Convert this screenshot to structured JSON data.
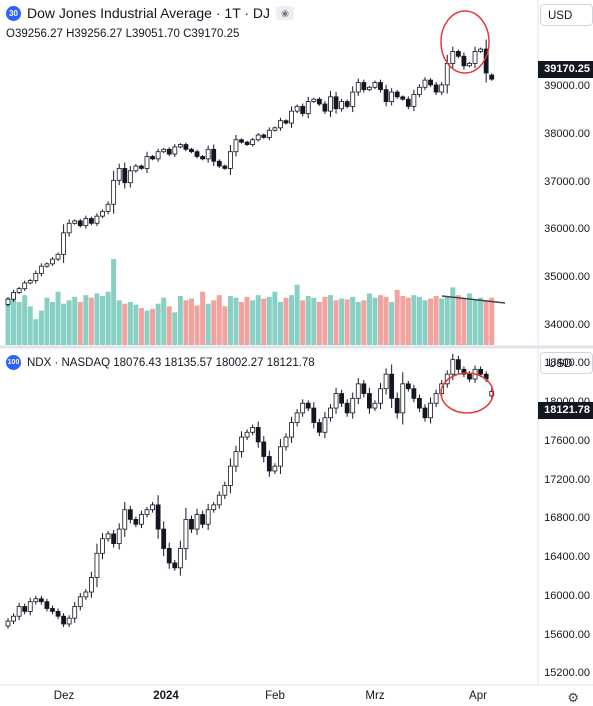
{
  "top_pane": {
    "badge": "30",
    "badge_color": "#2962ff",
    "title": "Dow Jones Industrial Average · 1T · DJ",
    "ohlc": "O39256.27 H39256.27 L39051.70 C39170.25",
    "currency": "USD",
    "last_price": "39170.25"
  },
  "bottom_pane": {
    "badge": "100",
    "badge_color": "#2962ff",
    "title": "NDX · NASDAQ  18076.43  18135.57  18002.27  18121.78",
    "currency": "USD",
    "last_price": "18121.78"
  },
  "x_axis_labels": [
    {
      "label": "Dez",
      "bold": false
    },
    {
      "label": "2024",
      "bold": true
    },
    {
      "label": "Feb",
      "bold": false
    },
    {
      "label": "Mrz",
      "bold": false
    },
    {
      "label": "Apr",
      "bold": false
    }
  ],
  "colors": {
    "candle": "#131722",
    "volume_up": "#89d0c4",
    "volume_down": "#f2a3a0",
    "annotation_circle": "#e53935",
    "trend_line": "#434651"
  },
  "icons": [
    "eye-icon",
    "settings-icon"
  ],
  "chart_data": [
    {
      "type": "candlestick",
      "series_name": "Dow Jones Industrial Average",
      "y_ticks": [
        "34000.00",
        "35000.00",
        "36000.00",
        "37000.00",
        "38000.00",
        "39000.00"
      ],
      "ylim": [
        33600,
        40200
      ],
      "close": [
        34560,
        34700,
        34780,
        34900,
        34950,
        35100,
        35250,
        35300,
        35400,
        35500,
        35950,
        36150,
        36200,
        36100,
        36250,
        36150,
        36300,
        36400,
        36550,
        37050,
        37300,
        37000,
        37250,
        37350,
        37300,
        37550,
        37500,
        37650,
        37700,
        37600,
        37750,
        37800,
        37700,
        37650,
        37550,
        37500,
        37700,
        37450,
        37350,
        37300,
        37650,
        37900,
        37850,
        37800,
        37900,
        38000,
        37950,
        38100,
        38150,
        38300,
        38250,
        38500,
        38600,
        38450,
        38700,
        38750,
        38650,
        38500,
        38800,
        38550,
        38700,
        38600,
        38900,
        39100,
        38950,
        39000,
        39100,
        38950,
        38700,
        38900,
        38800,
        38750,
        38600,
        38850,
        39000,
        39150,
        39050,
        38900,
        39050,
        39500,
        39750,
        39650,
        39450,
        39500,
        39750,
        39800,
        39300,
        39170
      ],
      "open": [
        34450,
        34560,
        34700,
        34780,
        34900,
        34950,
        35100,
        35250,
        35300,
        35400,
        35500,
        35950,
        36150,
        36200,
        36100,
        36250,
        36150,
        36300,
        36400,
        36550,
        37050,
        37300,
        37000,
        37250,
        37350,
        37300,
        37550,
        37500,
        37650,
        37700,
        37600,
        37750,
        37800,
        37700,
        37650,
        37550,
        37500,
        37700,
        37450,
        37350,
        37300,
        37650,
        37900,
        37850,
        37800,
        37900,
        38000,
        37950,
        38100,
        38150,
        38300,
        38250,
        38500,
        38600,
        38450,
        38700,
        38750,
        38650,
        38500,
        38800,
        38550,
        38700,
        38600,
        38900,
        39100,
        38950,
        39000,
        39100,
        38950,
        38700,
        38900,
        38800,
        38750,
        38600,
        38850,
        39000,
        39150,
        39050,
        38900,
        39050,
        39500,
        39750,
        39650,
        39450,
        39500,
        39750,
        39800,
        39256
      ]
    },
    {
      "type": "bar",
      "series_name": "Volume",
      "values": [
        55,
        60,
        50,
        58,
        45,
        30,
        40,
        55,
        50,
        62,
        48,
        52,
        56,
        50,
        58,
        55,
        60,
        57,
        62,
        100,
        52,
        48,
        50,
        47,
        43,
        40,
        42,
        48,
        55,
        45,
        38,
        57,
        52,
        54,
        46,
        62,
        48,
        52,
        58,
        45,
        57,
        55,
        50,
        56,
        52,
        58,
        54,
        56,
        62,
        50,
        55,
        58,
        70,
        52,
        57,
        55,
        50,
        56,
        58,
        52,
        54,
        53,
        56,
        50,
        52,
        60,
        55,
        58,
        56,
        50,
        64,
        57,
        55,
        58,
        56,
        52,
        54,
        57,
        54,
        56,
        67,
        58,
        55,
        60,
        52,
        55,
        52,
        55
      ]
    },
    {
      "type": "candlestick",
      "series_name": "NDX",
      "y_ticks": [
        "15200.00",
        "15600.00",
        "16000.00",
        "16400.00",
        "16800.00",
        "17200.00",
        "17600.00",
        "18000.00",
        "18400.00"
      ],
      "ylim": [
        15100,
        18560
      ],
      "close": [
        15750,
        15800,
        15900,
        15850,
        15950,
        15980,
        15950,
        15880,
        15850,
        15800,
        15720,
        15780,
        15900,
        16000,
        16050,
        16200,
        16450,
        16600,
        16650,
        16550,
        16700,
        16900,
        16800,
        16750,
        16850,
        16900,
        16950,
        16700,
        16500,
        16350,
        16300,
        16500,
        16800,
        16700,
        16850,
        16750,
        16900,
        16950,
        17050,
        17150,
        17350,
        17500,
        17650,
        17700,
        17750,
        17600,
        17450,
        17300,
        17350,
        17550,
        17650,
        17800,
        17900,
        18000,
        17950,
        17800,
        17700,
        17850,
        17950,
        18100,
        18000,
        17900,
        18050,
        18200,
        18100,
        17950,
        18000,
        18150,
        18300,
        18050,
        17900,
        18200,
        18150,
        18050,
        17950,
        17850,
        18000,
        18100,
        18200,
        18300,
        18450,
        18350,
        18300,
        18250,
        18350,
        18300,
        18250,
        18121
      ],
      "open": [
        15700,
        15750,
        15800,
        15900,
        15850,
        15950,
        15980,
        15950,
        15880,
        15850,
        15800,
        15720,
        15780,
        15900,
        16000,
        16050,
        16200,
        16450,
        16600,
        16650,
        16550,
        16700,
        16900,
        16800,
        16750,
        16850,
        16900,
        16950,
        16700,
        16500,
        16350,
        16300,
        16500,
        16800,
        16700,
        16850,
        16750,
        16900,
        16950,
        17050,
        17150,
        17350,
        17500,
        17650,
        17700,
        17750,
        17600,
        17450,
        17300,
        17350,
        17550,
        17650,
        17800,
        17900,
        18000,
        17950,
        17800,
        17700,
        17850,
        17950,
        18100,
        18000,
        17900,
        18050,
        18200,
        18100,
        17950,
        18000,
        18150,
        18300,
        18050,
        17900,
        18200,
        18150,
        18050,
        17950,
        17850,
        18000,
        18100,
        18200,
        18300,
        18450,
        18350,
        18300,
        18250,
        18350,
        18300,
        18076
      ]
    }
  ]
}
